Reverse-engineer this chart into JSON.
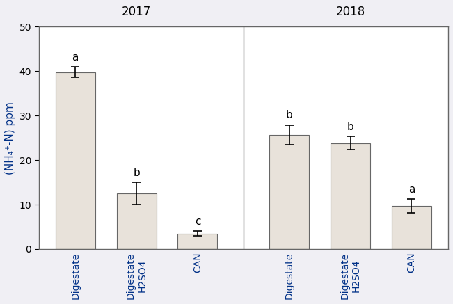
{
  "groups": [
    "2017",
    "2018"
  ],
  "categories": [
    "Digestate",
    "Digestate\nH2SO4",
    "CAN"
  ],
  "values": [
    [
      39.8,
      12.5,
      3.5
    ],
    [
      25.7,
      23.8,
      9.7
    ]
  ],
  "errors": [
    [
      1.2,
      2.5,
      0.5
    ],
    [
      2.2,
      1.5,
      1.5
    ]
  ],
  "letters": [
    [
      "a",
      "b",
      "c"
    ],
    [
      "b",
      "b",
      "a"
    ]
  ],
  "bar_color": "#e8e2da",
  "bar_edgecolor": "#666666",
  "text_color": "#003087",
  "ylabel": "(NH₄⁺-N) ppm",
  "ylim": [
    0,
    50
  ],
  "yticks": [
    0,
    10,
    20,
    30,
    40,
    50
  ],
  "background_color": "#f0eff4",
  "plot_bg_color": "#ffffff",
  "bar_width": 0.65,
  "spine_color": "#666666"
}
